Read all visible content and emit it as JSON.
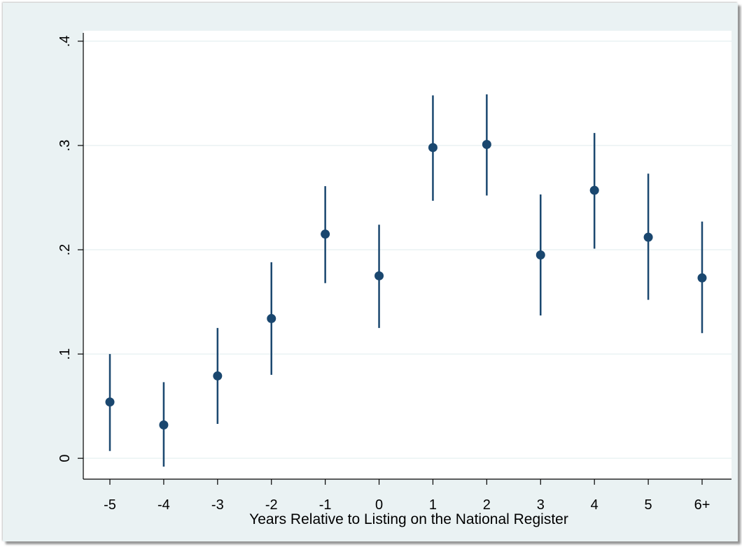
{
  "chart_data": {
    "type": "scatter",
    "title": "",
    "xlabel": "Years Relative to Listing on the National Register",
    "ylabel": "",
    "categories": [
      "-5",
      "-4",
      "-3",
      "-2",
      "-1",
      "0",
      "1",
      "2",
      "3",
      "4",
      "5",
      "6+"
    ],
    "series": [
      {
        "values": [
          0.054,
          0.032,
          0.079,
          0.134,
          0.215,
          0.175,
          0.298,
          0.301,
          0.195,
          0.257,
          0.212,
          0.173
        ],
        "ci_low": [
          0.007,
          -0.008,
          0.033,
          0.08,
          0.168,
          0.125,
          0.247,
          0.252,
          0.137,
          0.201,
          0.152,
          0.12
        ],
        "ci_high": [
          0.1,
          0.073,
          0.125,
          0.188,
          0.261,
          0.224,
          0.348,
          0.349,
          0.253,
          0.312,
          0.273,
          0.227
        ]
      }
    ],
    "ylim": [
      -0.02,
      0.41
    ],
    "yticks": [
      0,
      0.1,
      0.2,
      0.3,
      0.4
    ],
    "ytick_labels": [
      "0",
      ".1",
      ".2",
      ".3",
      ".4"
    ],
    "grid": true,
    "colors": {
      "marker": "#1a476f",
      "grid": "#eaf2f3",
      "outer_background": "#eaf2f3",
      "plot_background": "#ffffff"
    }
  }
}
